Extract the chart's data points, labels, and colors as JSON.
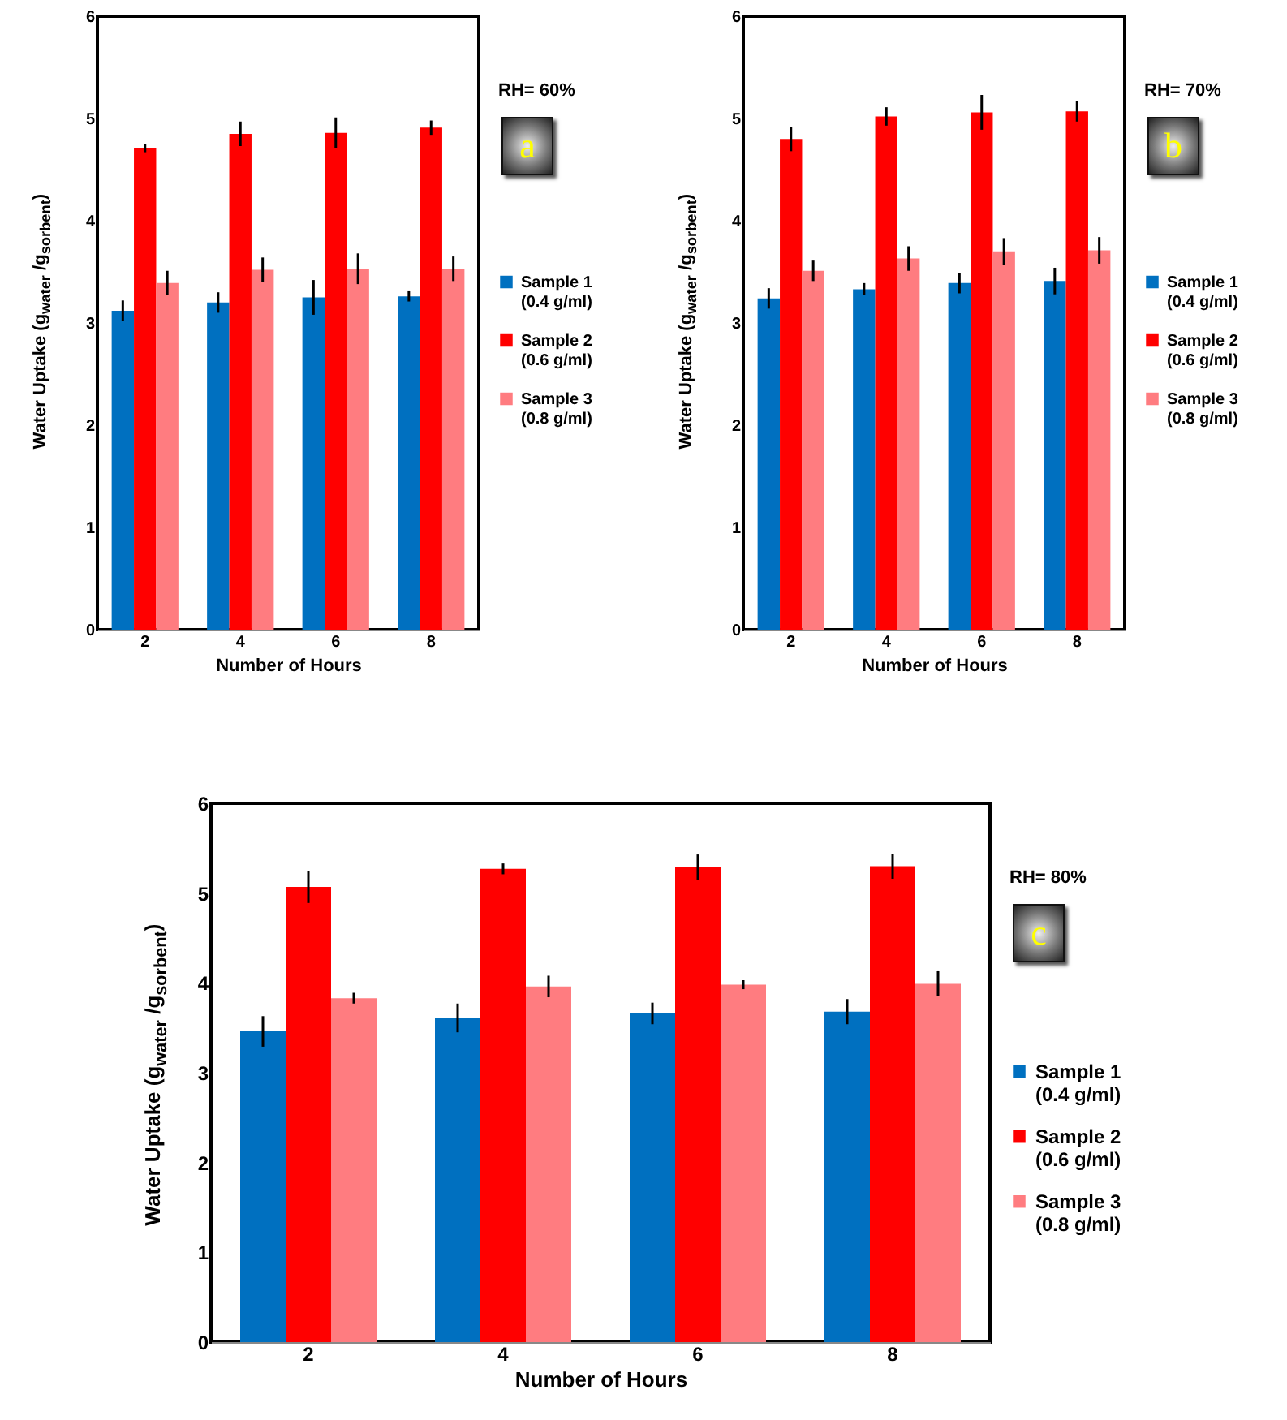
{
  "chart_data": [
    {
      "type": "bar",
      "xlabel": "Number of Hours",
      "ylabel": "Water Uptake (g$_{water}$ /g$_{sorbent}$)",
      "categories": [
        "2",
        "4",
        "6",
        "8"
      ],
      "ylim": [
        0,
        6
      ],
      "yticks": [
        0,
        1,
        2,
        3,
        4,
        5,
        6
      ],
      "legend": "right",
      "annotations": [
        "RH= 60%",
        "a"
      ],
      "series": [
        {
          "name": "Sample 1 (0.4 g/ml)",
          "color": "#0070c0",
          "values": [
            3.12,
            3.2,
            3.25,
            3.26
          ],
          "errors": [
            0.1,
            0.1,
            0.17,
            0.05
          ]
        },
        {
          "name": "Sample 2 (0.6 g/ml)",
          "color": "#ff0000",
          "values": [
            4.71,
            4.85,
            4.86,
            4.91
          ],
          "errors": [
            0.04,
            0.12,
            0.15,
            0.07
          ]
        },
        {
          "name": "Sample 3 (0.8 g/ml)",
          "color": "#ff7c80",
          "values": [
            3.39,
            3.52,
            3.53,
            3.53
          ],
          "errors": [
            0.12,
            0.12,
            0.15,
            0.12
          ]
        }
      ]
    },
    {
      "type": "bar",
      "xlabel": "Number of Hours",
      "ylabel": "Water Uptake (g$_{water}$ /g$_{sorbent}$)",
      "categories": [
        "2",
        "4",
        "6",
        "8"
      ],
      "ylim": [
        0,
        6
      ],
      "yticks": [
        0,
        1,
        2,
        3,
        4,
        5,
        6
      ],
      "legend": "right",
      "annotations": [
        "RH= 70%",
        "b"
      ],
      "series": [
        {
          "name": "Sample 1 (0.4 g/ml)",
          "color": "#0070c0",
          "values": [
            3.24,
            3.33,
            3.39,
            3.41
          ],
          "errors": [
            0.1,
            0.06,
            0.1,
            0.13
          ]
        },
        {
          "name": "Sample 2 (0.6 g/ml)",
          "color": "#ff0000",
          "values": [
            4.8,
            5.02,
            5.06,
            5.07
          ],
          "errors": [
            0.12,
            0.09,
            0.17,
            0.1
          ]
        },
        {
          "name": "Sample 3 (0.8 g/ml)",
          "color": "#ff7c80",
          "values": [
            3.51,
            3.63,
            3.7,
            3.71
          ],
          "errors": [
            0.1,
            0.12,
            0.13,
            0.13
          ]
        }
      ]
    },
    {
      "type": "bar",
      "xlabel": "Number of Hours",
      "ylabel": "Water Uptake (g$_{water}$ /g$_{sorbent}$)",
      "categories": [
        "2",
        "4",
        "6",
        "8"
      ],
      "ylim": [
        0,
        6
      ],
      "yticks": [
        0,
        1,
        2,
        3,
        4,
        5,
        6
      ],
      "legend": "right",
      "annotations": [
        "RH= 80%",
        "c"
      ],
      "series": [
        {
          "name": "Sample 1 (0.4 g/ml)",
          "color": "#0070c0",
          "values": [
            3.46,
            3.61,
            3.66,
            3.68
          ],
          "errors": [
            0.17,
            0.16,
            0.12,
            0.14
          ]
        },
        {
          "name": "Sample 2 (0.6 g/ml)",
          "color": "#ff0000",
          "values": [
            5.07,
            5.27,
            5.29,
            5.3
          ],
          "errors": [
            0.18,
            0.06,
            0.14,
            0.14
          ]
        },
        {
          "name": "Sample 3 (0.8 g/ml)",
          "color": "#ff7c80",
          "values": [
            3.83,
            3.96,
            3.98,
            3.99
          ],
          "errors": [
            0.06,
            0.12,
            0.05,
            0.14
          ]
        }
      ]
    }
  ]
}
